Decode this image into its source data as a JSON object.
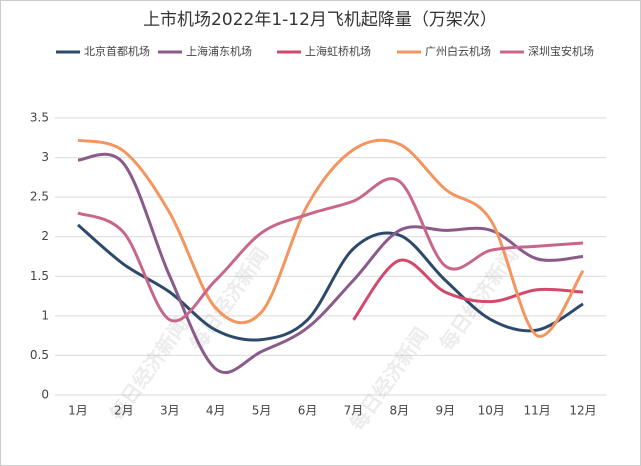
{
  "chart_data": {
    "type": "line",
    "title": "上市机场2022年1-12月飞机起降量（万架次）",
    "watermark": "每日经济新闻",
    "categories": [
      "1月",
      "2月",
      "3月",
      "4月",
      "5月",
      "6月",
      "7月",
      "8月",
      "9月",
      "10月",
      "11月",
      "12月"
    ],
    "series": [
      {
        "name": "北京首都机场",
        "color": "#2e4a6b",
        "values": [
          2.15,
          1.65,
          1.3,
          0.82,
          0.7,
          0.95,
          1.85,
          2.02,
          1.45,
          0.95,
          0.82,
          1.15
        ]
      },
      {
        "name": "上海浦东机场",
        "color": "#8a5a8a",
        "values": [
          2.97,
          2.92,
          1.5,
          0.33,
          0.55,
          0.85,
          1.45,
          2.08,
          2.08,
          2.08,
          1.72,
          1.75
        ]
      },
      {
        "name": "上海虹桥机场",
        "color": "#d2496b",
        "values": [
          null,
          null,
          null,
          null,
          null,
          null,
          0.95,
          1.7,
          1.3,
          1.18,
          1.33,
          1.3
        ]
      },
      {
        "name": "广州白云机场",
        "color": "#f4955f",
        "values": [
          3.22,
          3.08,
          2.3,
          1.1,
          1.05,
          2.4,
          3.1,
          3.17,
          2.6,
          2.2,
          0.75,
          1.57
        ]
      },
      {
        "name": "深圳宝安机场",
        "color": "#c8678a",
        "values": [
          2.3,
          2.05,
          0.95,
          1.45,
          2.05,
          2.28,
          2.45,
          2.7,
          1.63,
          1.83,
          1.88,
          1.92
        ]
      }
    ],
    "ylim": [
      0,
      3.5
    ],
    "yticks": [
      0,
      0.5,
      1,
      1.5,
      2,
      2.5,
      3,
      3.5
    ],
    "grid": true
  }
}
